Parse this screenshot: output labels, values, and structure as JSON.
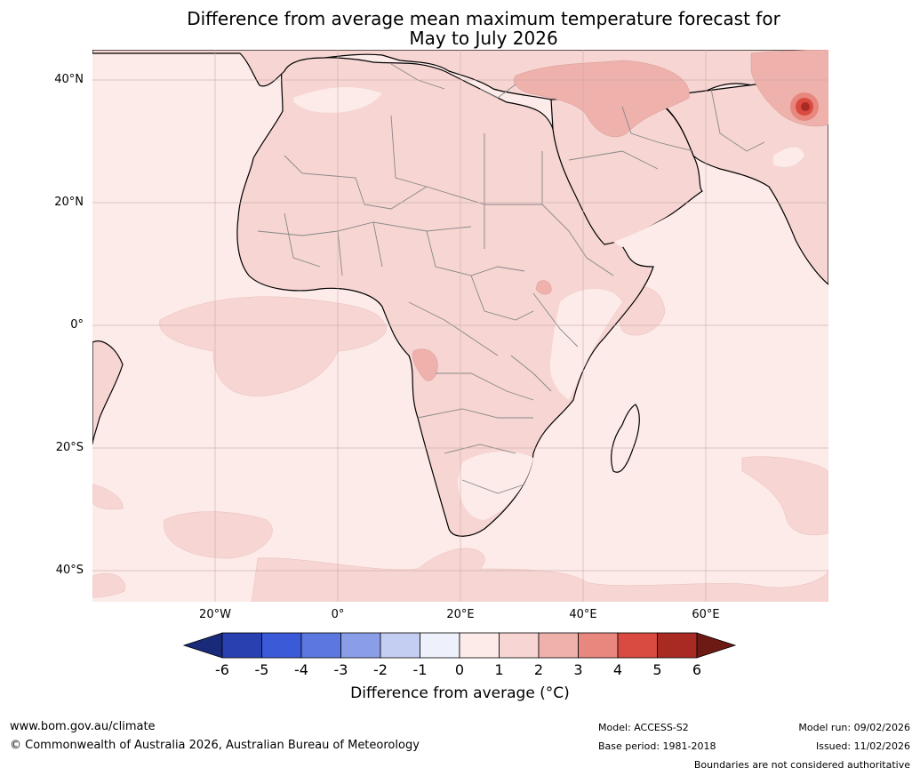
{
  "title": {
    "line1": "Difference from average mean maximum temperature forecast for",
    "line2": "May to July 2026"
  },
  "map": {
    "lat_labels": [
      "40°N",
      "20°N",
      "0°",
      "20°S",
      "40°S"
    ],
    "lon_labels": [
      "20°W",
      "0°",
      "20°E",
      "40°E",
      "60°E"
    ],
    "extent": {
      "lon_min": -40,
      "lon_max": 80,
      "lat_min": -45,
      "lat_max": 45
    },
    "background_color": "#fcebe9",
    "land_color": "#f6d5d2",
    "hot_color": "#eeb1ac"
  },
  "colorbar": {
    "ticks": [
      "-6",
      "-5",
      "-4",
      "-3",
      "-2",
      "-1",
      "0",
      "1",
      "2",
      "3",
      "4",
      "5",
      "6"
    ],
    "colors": [
      "#1a2a7a",
      "#2840b0",
      "#3a5ad8",
      "#5a78e0",
      "#8a9ee8",
      "#c4cdf2",
      "#eef0fb",
      "#fcebe9",
      "#f6d5d2",
      "#eeb1ac",
      "#e8877e",
      "#d94a40",
      "#a82a22",
      "#6e1a14"
    ],
    "label": "Difference from average (°C)"
  },
  "footer": {
    "url": "www.bom.gov.au/climate",
    "copyright": "© Commonwealth of Australia 2026, Australian Bureau of Meteorology",
    "model": "Model: ACCESS-S2",
    "base_period": "Base period: 1981-2018",
    "model_run": "Model run: 09/02/2026",
    "issued": "Issued: 11/02/2026",
    "disclaimer": "Boundaries are not considered authoritative"
  }
}
